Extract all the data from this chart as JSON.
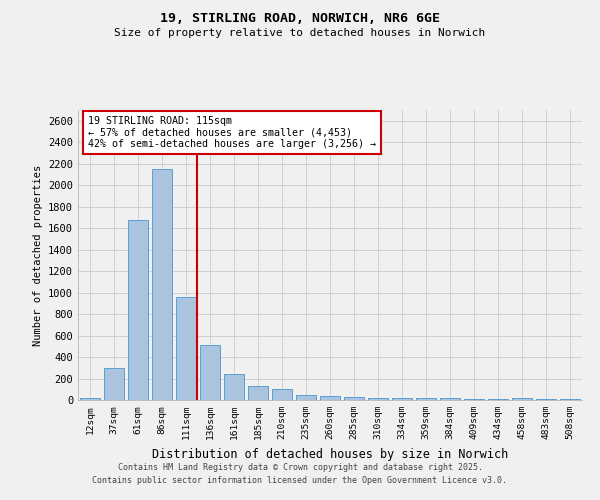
{
  "title1": "19, STIRLING ROAD, NORWICH, NR6 6GE",
  "title2": "Size of property relative to detached houses in Norwich",
  "xlabel": "Distribution of detached houses by size in Norwich",
  "ylabel": "Number of detached properties",
  "bar_labels": [
    "12sqm",
    "37sqm",
    "61sqm",
    "86sqm",
    "111sqm",
    "136sqm",
    "161sqm",
    "185sqm",
    "210sqm",
    "235sqm",
    "260sqm",
    "285sqm",
    "310sqm",
    "334sqm",
    "359sqm",
    "384sqm",
    "409sqm",
    "434sqm",
    "458sqm",
    "483sqm",
    "508sqm"
  ],
  "bar_heights": [
    20,
    300,
    1680,
    2150,
    960,
    510,
    245,
    130,
    105,
    45,
    35,
    25,
    20,
    15,
    15,
    20,
    10,
    5,
    15,
    10,
    5
  ],
  "bar_color": "#aac4e0",
  "bar_edgecolor": "#5a9fd4",
  "annotation_text": "19 STIRLING ROAD: 115sqm\n← 57% of detached houses are smaller (4,453)\n42% of semi-detached houses are larger (3,256) →",
  "annotation_color": "#cc0000",
  "ylim": [
    0,
    2700
  ],
  "yticks": [
    0,
    200,
    400,
    600,
    800,
    1000,
    1200,
    1400,
    1600,
    1800,
    2000,
    2200,
    2400,
    2600
  ],
  "footer1": "Contains HM Land Registry data © Crown copyright and database right 2025.",
  "footer2": "Contains public sector information licensed under the Open Government Licence v3.0.",
  "bg_color": "#f0f0f0",
  "grid_color": "#d0d0d0",
  "prop_line_idx": 4.45
}
